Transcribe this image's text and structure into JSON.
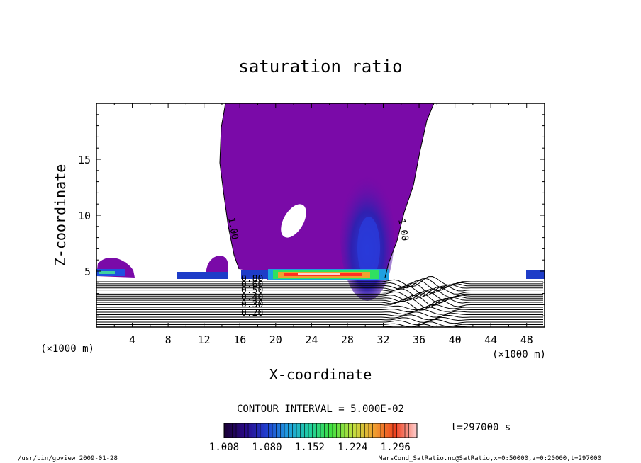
{
  "chart_data": {
    "type": "heatmap",
    "title": "saturation ratio",
    "xlabel": "X-coordinate",
    "ylabel": "Z-coordinate",
    "x_unit": "(×1000 m)",
    "z_unit": "(×1000 m)",
    "xlim": [
      0,
      50
    ],
    "ylim": [
      0,
      20
    ],
    "x_ticks": [
      4,
      8,
      12,
      16,
      20,
      24,
      28,
      32,
      36,
      40,
      44,
      48
    ],
    "y_ticks": [
      5,
      10,
      15
    ],
    "contour_interval_text": "CONTOUR INTERVAL = 5.000E-02",
    "time_text": "t=297000 s",
    "colorbar": {
      "min": 1.008,
      "max": 1.332,
      "labels": [
        "1.008",
        "1.080",
        "1.152",
        "1.224",
        "1.296"
      ],
      "colors": [
        "#1a0033",
        "#2a0a8a",
        "#1f3fd0",
        "#1fa0e0",
        "#20d0a0",
        "#40e040",
        "#c0e040",
        "#f0a030",
        "#f04020",
        "#ffd0d0"
      ]
    },
    "contour_labels": [
      "1.00",
      "1.00",
      "0.50",
      "0.40",
      "0.30",
      "0.20",
      "0.80",
      "0.60"
    ],
    "base_fill_color": "#7a0aa8",
    "footer_left": "/usr/bin/gpview   2009-01-28",
    "footer_right": "MarsCond_SatRatio.nc@SatRatio,x=0:50000,z=0:20000,t=297000"
  }
}
